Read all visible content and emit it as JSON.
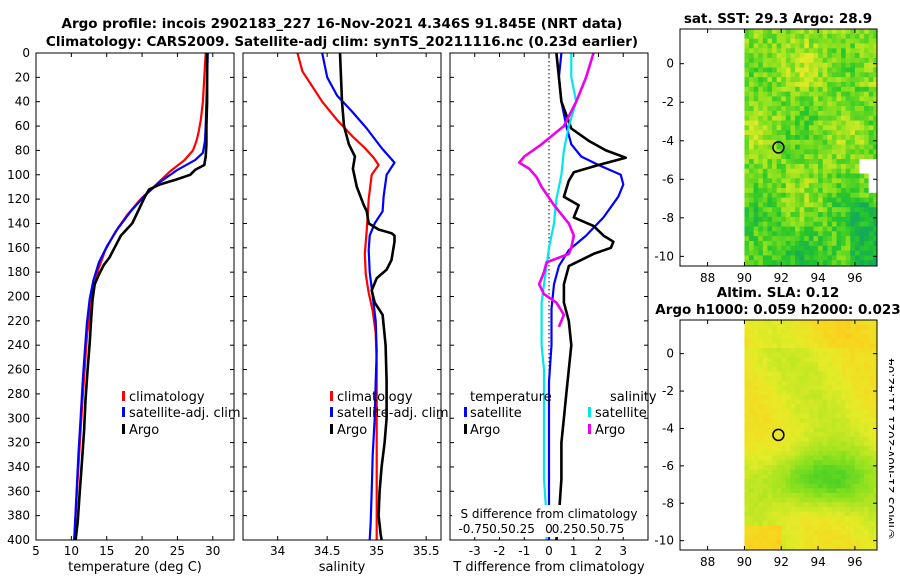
{
  "title_line1": "Argo profile: incois 2902183_227 16-Nov-2021 4.346S 91.845E (NRT data)",
  "title_line2": "Climatology: CARS2009. Satellite-adj clim: synTS_20211116.nc (0.23d earlier)",
  "timestamp": "©IMOS 21-Nov-2021 11:42:04",
  "colors": {
    "climatology": "#ff0000",
    "satellite": "#0000ff",
    "argo": "#000000",
    "sat_temp": "#00e5ee",
    "sal_diff": "#ee00ee"
  },
  "chart_data": [
    {
      "id": "temperature",
      "type": "line",
      "xlabel": "temperature (deg C)",
      "xlim": [
        5,
        33
      ],
      "xticks": [
        5,
        10,
        15,
        20,
        25,
        30
      ],
      "ylim": [
        0,
        400
      ],
      "yticks": [
        0,
        20,
        40,
        60,
        80,
        100,
        120,
        140,
        160,
        180,
        200,
        220,
        240,
        260,
        280,
        300,
        320,
        340,
        360,
        380,
        400
      ],
      "legend": [
        "climatology",
        "satellite-adj. clim",
        "Argo"
      ],
      "series": [
        {
          "name": "climatology",
          "color": "#ff0000",
          "x": [
            29.0,
            28.8,
            28.6,
            28.3,
            28.0,
            27.7,
            27.2,
            26.0,
            24.0,
            22.0,
            19.8,
            17.9,
            16.2,
            14.8,
            13.8,
            13.1,
            12.6,
            12.2,
            11.9,
            11.6,
            11.3,
            11.0,
            10.7,
            10.4
          ],
          "y": [
            0,
            20,
            40,
            55,
            65,
            72,
            80,
            88,
            97,
            108,
            120,
            133,
            147,
            162,
            178,
            195,
            213,
            233,
            258,
            283,
            310,
            340,
            370,
            400
          ]
        },
        {
          "name": "satellite-adj. clim",
          "color": "#0000ff",
          "x": [
            29.3,
            29.2,
            29.1,
            29.0,
            28.9,
            28.6,
            27.5,
            25.0,
            22.5,
            20.4,
            18.4,
            16.6,
            15.1,
            13.9,
            13.1,
            12.6,
            12.2,
            11.9,
            11.6,
            11.3,
            11.0,
            10.7,
            10.4
          ],
          "y": [
            0,
            20,
            40,
            60,
            72,
            82,
            88,
            96,
            106,
            117,
            130,
            144,
            158,
            172,
            187,
            202,
            222,
            245,
            270,
            300,
            330,
            365,
            400
          ]
        },
        {
          "name": "Argo",
          "color": "#000000",
          "x": [
            29.2,
            29.2,
            29.2,
            29.1,
            29.1,
            29.0,
            28.8,
            27.5,
            26.8,
            24.8,
            22.5,
            21.0,
            20.4,
            19.6,
            18.6,
            17.0,
            16.1,
            15.4,
            14.6,
            13.9,
            13.3,
            13.0,
            12.8,
            12.6,
            12.3,
            12.0,
            11.8,
            11.5,
            11.2,
            10.9,
            10.6
          ],
          "y": [
            0,
            20,
            40,
            60,
            75,
            85,
            92,
            96,
            100,
            104,
            108,
            112,
            118,
            128,
            140,
            150,
            160,
            168,
            174,
            182,
            190,
            202,
            218,
            238,
            260,
            285,
            310,
            335,
            360,
            385,
            400
          ]
        }
      ]
    },
    {
      "id": "salinity",
      "type": "line",
      "xlabel": "salinity",
      "xlim": [
        33.65,
        35.65
      ],
      "xticks": [
        34,
        34.5,
        35,
        35.5
      ],
      "xticklabels": [
        "34",
        "34.5",
        "35",
        "35.5"
      ],
      "ylim": [
        0,
        400
      ],
      "legend": [
        "climatology",
        "satellite-adj. clim",
        "Argo"
      ],
      "series": [
        {
          "name": "climatology",
          "color": "#ff0000",
          "x": [
            34.2,
            34.25,
            34.33,
            34.45,
            34.6,
            34.75,
            34.88,
            34.97,
            35.02,
            34.95,
            34.92,
            34.9,
            34.88,
            34.89,
            34.92,
            34.96,
            34.99,
            35.0,
            35.0,
            35.0,
            35.0,
            35.0,
            35.0
          ],
          "y": [
            0,
            15,
            25,
            40,
            55,
            68,
            78,
            86,
            92,
            100,
            120,
            145,
            165,
            182,
            197,
            212,
            230,
            255,
            280,
            310,
            340,
            370,
            400
          ]
        },
        {
          "name": "satellite-adj. clim",
          "color": "#0000ff",
          "x": [
            34.45,
            34.5,
            34.6,
            34.75,
            34.9,
            35.05,
            35.18,
            35.1,
            35.07,
            35.06,
            34.98,
            34.93,
            34.92,
            34.93,
            34.96,
            34.99,
            35.0,
            34.99,
            34.98,
            34.96,
            34.95,
            34.94,
            34.93
          ],
          "y": [
            0,
            20,
            35,
            48,
            62,
            78,
            90,
            100,
            118,
            130,
            140,
            150,
            162,
            180,
            200,
            220,
            245,
            270,
            300,
            330,
            360,
            385,
            400
          ]
        },
        {
          "name": "Argo",
          "color": "#000000",
          "x": [
            34.63,
            34.64,
            34.65,
            34.67,
            34.72,
            34.78,
            34.76,
            34.8,
            34.87,
            34.9,
            34.92,
            35.02,
            35.15,
            35.18,
            35.18,
            35.17,
            35.16,
            35.15,
            35.1,
            35.0,
            34.95,
            34.98,
            35.06,
            35.09,
            35.1,
            35.1,
            35.08,
            35.05,
            35.03,
            35.02,
            35.04,
            35.05
          ],
          "y": [
            0,
            20,
            40,
            60,
            75,
            85,
            95,
            110,
            125,
            130,
            140,
            145,
            148,
            150,
            155,
            160,
            165,
            170,
            178,
            185,
            195,
            205,
            215,
            240,
            270,
            300,
            320,
            340,
            360,
            380,
            395,
            400
          ]
        }
      ]
    },
    {
      "id": "difference",
      "type": "line",
      "xlabel": "T difference from climatology",
      "xlim": [
        -4,
        4
      ],
      "xticks": [
        -3,
        -2,
        -1,
        0,
        1,
        2,
        3
      ],
      "ylim": [
        0,
        400
      ],
      "top_label": "S difference from climatology",
      "top_ticks": [
        "-0.75",
        "0.50.25",
        "0",
        "0.250.50.75"
      ],
      "legend": {
        "temperature_header": "temperature",
        "salinity_header": "salinity",
        "temperature_items": [
          "satellite",
          "Argo"
        ],
        "salinity_items": [
          "satellite",
          "Argo"
        ]
      },
      "series": [
        {
          "name": "temperature satellite",
          "color": "#0000ff",
          "x": [
            0.5,
            0.4,
            0.5,
            0.7,
            0.9,
            1.3,
            2.0,
            2.9,
            3.0,
            2.8,
            2.2,
            1.5,
            0.8,
            0.4,
            0.2,
            0.1,
            0.1,
            0.0,
            0.0,
            0.0,
            0.0,
            0.0
          ],
          "y": [
            0,
            20,
            40,
            60,
            75,
            85,
            92,
            100,
            108,
            118,
            135,
            150,
            162,
            175,
            190,
            210,
            240,
            270,
            300,
            330,
            360,
            400
          ]
        },
        {
          "name": "temperature Argo",
          "color": "#000000",
          "x": [
            0.3,
            0.4,
            0.5,
            0.9,
            1.6,
            2.3,
            3.1,
            2.0,
            1.0,
            0.8,
            0.6,
            1.2,
            1.0,
            1.8,
            2.2,
            2.6,
            2.5,
            1.8,
            0.8,
            0.6,
            0.6,
            0.8,
            0.9,
            0.8,
            0.7,
            0.6,
            0.5,
            0.5,
            0.4,
            0.3
          ],
          "y": [
            0,
            20,
            40,
            62,
            72,
            80,
            86,
            92,
            98,
            105,
            118,
            125,
            135,
            142,
            150,
            155,
            160,
            165,
            175,
            190,
            205,
            220,
            240,
            260,
            280,
            300,
            320,
            350,
            380,
            400
          ]
        },
        {
          "name": "salinity satellite",
          "color": "#00e5ee",
          "x": [
            0.9,
            0.9,
            1.1,
            0.8,
            0.6,
            0.5,
            0.3,
            0.2,
            0.0,
            -0.1,
            -0.2,
            -0.3,
            -0.3,
            -0.3,
            -0.2,
            -0.2,
            -0.2,
            -0.2,
            -0.1,
            -0.1
          ],
          "y": [
            0,
            20,
            40,
            60,
            80,
            100,
            120,
            140,
            160,
            175,
            190,
            205,
            220,
            240,
            260,
            290,
            320,
            350,
            380,
            400
          ]
        },
        {
          "name": "salinity Argo",
          "color": "#ee00ee",
          "x": [
            1.8,
            1.5,
            1.1,
            0.6,
            -0.3,
            -1.0,
            -1.2,
            -0.8,
            -0.5,
            -0.3,
            0.2,
            0.8,
            1.0,
            0.9,
            0.8,
            -0.1,
            -0.2,
            -0.4,
            -0.2,
            0.3,
            0.6,
            0.4
          ],
          "y": [
            0,
            20,
            40,
            60,
            75,
            85,
            90,
            95,
            102,
            110,
            125,
            140,
            150,
            160,
            165,
            172,
            180,
            190,
            198,
            205,
            215,
            225
          ]
        }
      ]
    },
    {
      "id": "sst_map",
      "type": "heatmap",
      "title": "sat. SST: 29.3 Argo: 28.9",
      "xlim": [
        86.5,
        97.2
      ],
      "xticks": [
        88,
        90,
        92,
        94,
        96
      ],
      "ylim": [
        -10.5,
        1.8
      ],
      "yticks": [
        0,
        -2,
        -4,
        -6,
        -8,
        -10
      ],
      "data_xrange": [
        90,
        97.2
      ],
      "marker": {
        "lon": 91.845,
        "lat": -4.346
      }
    },
    {
      "id": "sla_map",
      "type": "heatmap",
      "title_line1": "Altim. SLA: 0.12",
      "title_line2": "Argo h1000: 0.059 h2000: 0.023",
      "xlim": [
        86.5,
        97.2
      ],
      "xticks": [
        88,
        90,
        92,
        94,
        96
      ],
      "ylim": [
        -10.5,
        1.8
      ],
      "yticks": [
        0,
        -2,
        -4,
        -6,
        -8,
        -10
      ],
      "data_xrange": [
        90,
        97.2
      ],
      "marker": {
        "lon": 91.845,
        "lat": -4.346
      }
    }
  ]
}
